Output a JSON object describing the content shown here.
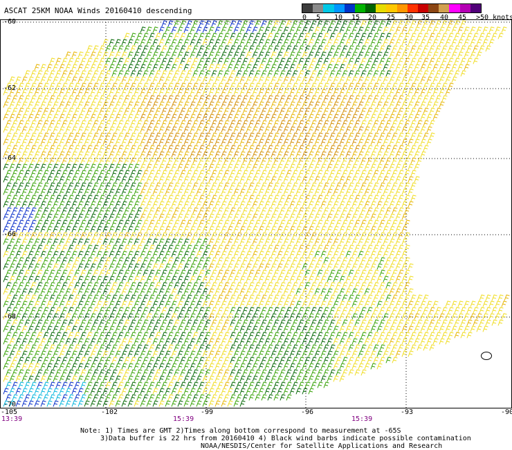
{
  "title": "ASCAT 25KM NOAA Winds 20160410 descending",
  "colorbar": {
    "colors": [
      "#3c3c3c",
      "#8a8a8a",
      "#00c8e6",
      "#0096ff",
      "#0032c8",
      "#00b400",
      "#006400",
      "#e6dc00",
      "#ffc800",
      "#ff9600",
      "#ff3200",
      "#c80000",
      "#8b4513",
      "#d2a050",
      "#ff00ff",
      "#b400b4",
      "#500078"
    ],
    "labels": [
      "0",
      "5",
      "10",
      "15",
      "20",
      "25",
      "30",
      "35",
      "40",
      "45",
      ">50 knots"
    ]
  },
  "latitudes": [
    "-60",
    "-62",
    "-64",
    "-66",
    "-68",
    "-70"
  ],
  "longitudes": [
    "-105",
    "-102",
    "-99",
    "-96",
    "-93",
    "-90"
  ],
  "times": [
    "13:39",
    "15:39",
    "15:39"
  ],
  "notes": [
    "Note: 1) Times are GMT 2)Times along bottom correspond to measurement at -65S",
    "3)Data buffer is 22 hrs from 20160410 4) Black wind barbs indicate possible contamination",
    "NOAA/NESDIS/Center for Satellite Applications and Research"
  ],
  "speed_classes": {
    "yellow": "#f0dc1e",
    "gold": "#e6b400",
    "orange": "#d28c00",
    "green": "#32a000",
    "dark_green": "#006400",
    "blue": "#0028c8",
    "cyan": "#00b4dc",
    "black": "#000000"
  }
}
